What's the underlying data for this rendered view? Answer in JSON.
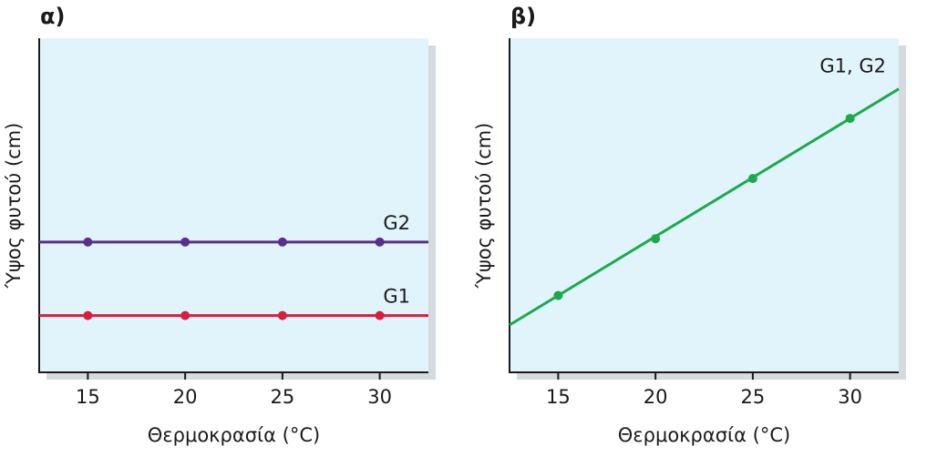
{
  "chart_data": [
    {
      "type": "line",
      "panel_label": "α)",
      "xlabel": "Θερμοκρασία (°C)",
      "ylabel": "Ύψος φυτού (cm)",
      "x_ticks": [
        15,
        20,
        25,
        30
      ],
      "xlim": [
        12.5,
        32.5
      ],
      "ylim": [
        0,
        10
      ],
      "y_ticks_shown": false,
      "grid": false,
      "background": "#e2f4fb",
      "series": [
        {
          "name": "G2",
          "color": "#5b2d8c",
          "x": [
            15,
            20,
            25,
            30
          ],
          "y": [
            3.9,
            3.9,
            3.9,
            3.9
          ],
          "line_x": [
            12.5,
            32.5
          ]
        },
        {
          "name": "G1",
          "color": "#d81e3f",
          "x": [
            15,
            20,
            25,
            30
          ],
          "y": [
            1.7,
            1.7,
            1.7,
            1.7
          ],
          "line_x": [
            12.5,
            32.5
          ]
        }
      ]
    },
    {
      "type": "line",
      "panel_label": "β)",
      "xlabel": "Θερμοκρασία (°C)",
      "ylabel": "Ύψος φυτού (cm)",
      "x_ticks": [
        15,
        20,
        25,
        30
      ],
      "xlim": [
        12.5,
        32.5
      ],
      "ylim": [
        0,
        10
      ],
      "y_ticks_shown": false,
      "grid": false,
      "background": "#e2f4fb",
      "series": [
        {
          "name": "G1, G2",
          "color": "#1aaa4b",
          "x": [
            15,
            20,
            25,
            30
          ],
          "y": [
            2.3,
            4.0,
            5.8,
            7.6
          ],
          "line_x": [
            12.5,
            32.5
          ]
        }
      ]
    }
  ]
}
